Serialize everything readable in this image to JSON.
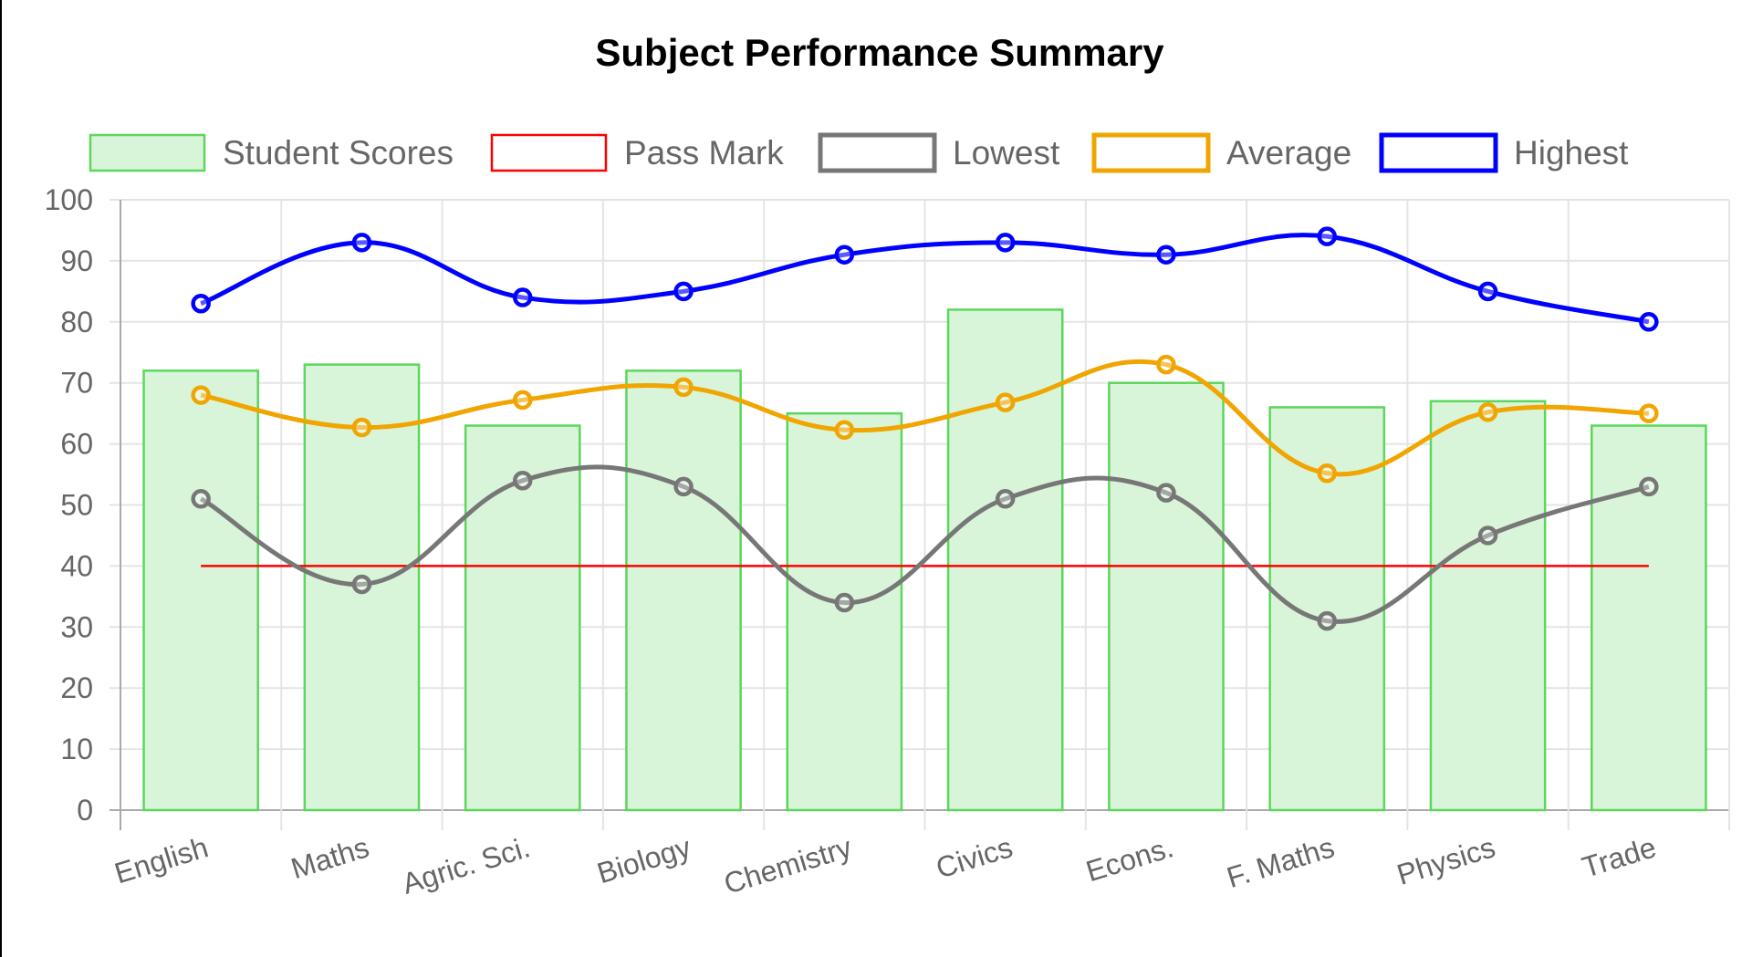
{
  "chart_data": {
    "type": "bar",
    "title": "Subject Performance Summary",
    "categories": [
      "English",
      "Maths",
      "Agric. Sci.",
      "Biology",
      "Chemistry",
      "Civics",
      "Econs.",
      "F. Maths",
      "Physics",
      "Trade"
    ],
    "ylim": [
      0,
      100
    ],
    "yticks": [
      0,
      10,
      20,
      30,
      40,
      50,
      60,
      70,
      80,
      90,
      100
    ],
    "grid": true,
    "legend_position": "top",
    "series": [
      {
        "name": "Student Scores",
        "type": "bar",
        "color": "#5cd65c",
        "fill": "#d9f5d9",
        "values": [
          72,
          73,
          63,
          72,
          65,
          82,
          70,
          66,
          67,
          63
        ]
      },
      {
        "name": "Pass Mark",
        "type": "line",
        "color": "#ff0000",
        "values": [
          40,
          40,
          40,
          40,
          40,
          40,
          40,
          40,
          40,
          40
        ]
      },
      {
        "name": "Lowest",
        "type": "line",
        "color": "#777777",
        "values": [
          51,
          37,
          54,
          53,
          34,
          51,
          52,
          31,
          45,
          53
        ]
      },
      {
        "name": "Average",
        "type": "line",
        "color": "#f0a500",
        "values": [
          68,
          62.7,
          67.2,
          69.3,
          62.3,
          66.8,
          73,
          55.2,
          65.2,
          65
        ]
      },
      {
        "name": "Highest",
        "type": "line",
        "color": "#0000ff",
        "values": [
          83,
          93,
          84,
          85,
          91,
          93,
          91,
          94,
          85,
          80
        ]
      }
    ]
  }
}
